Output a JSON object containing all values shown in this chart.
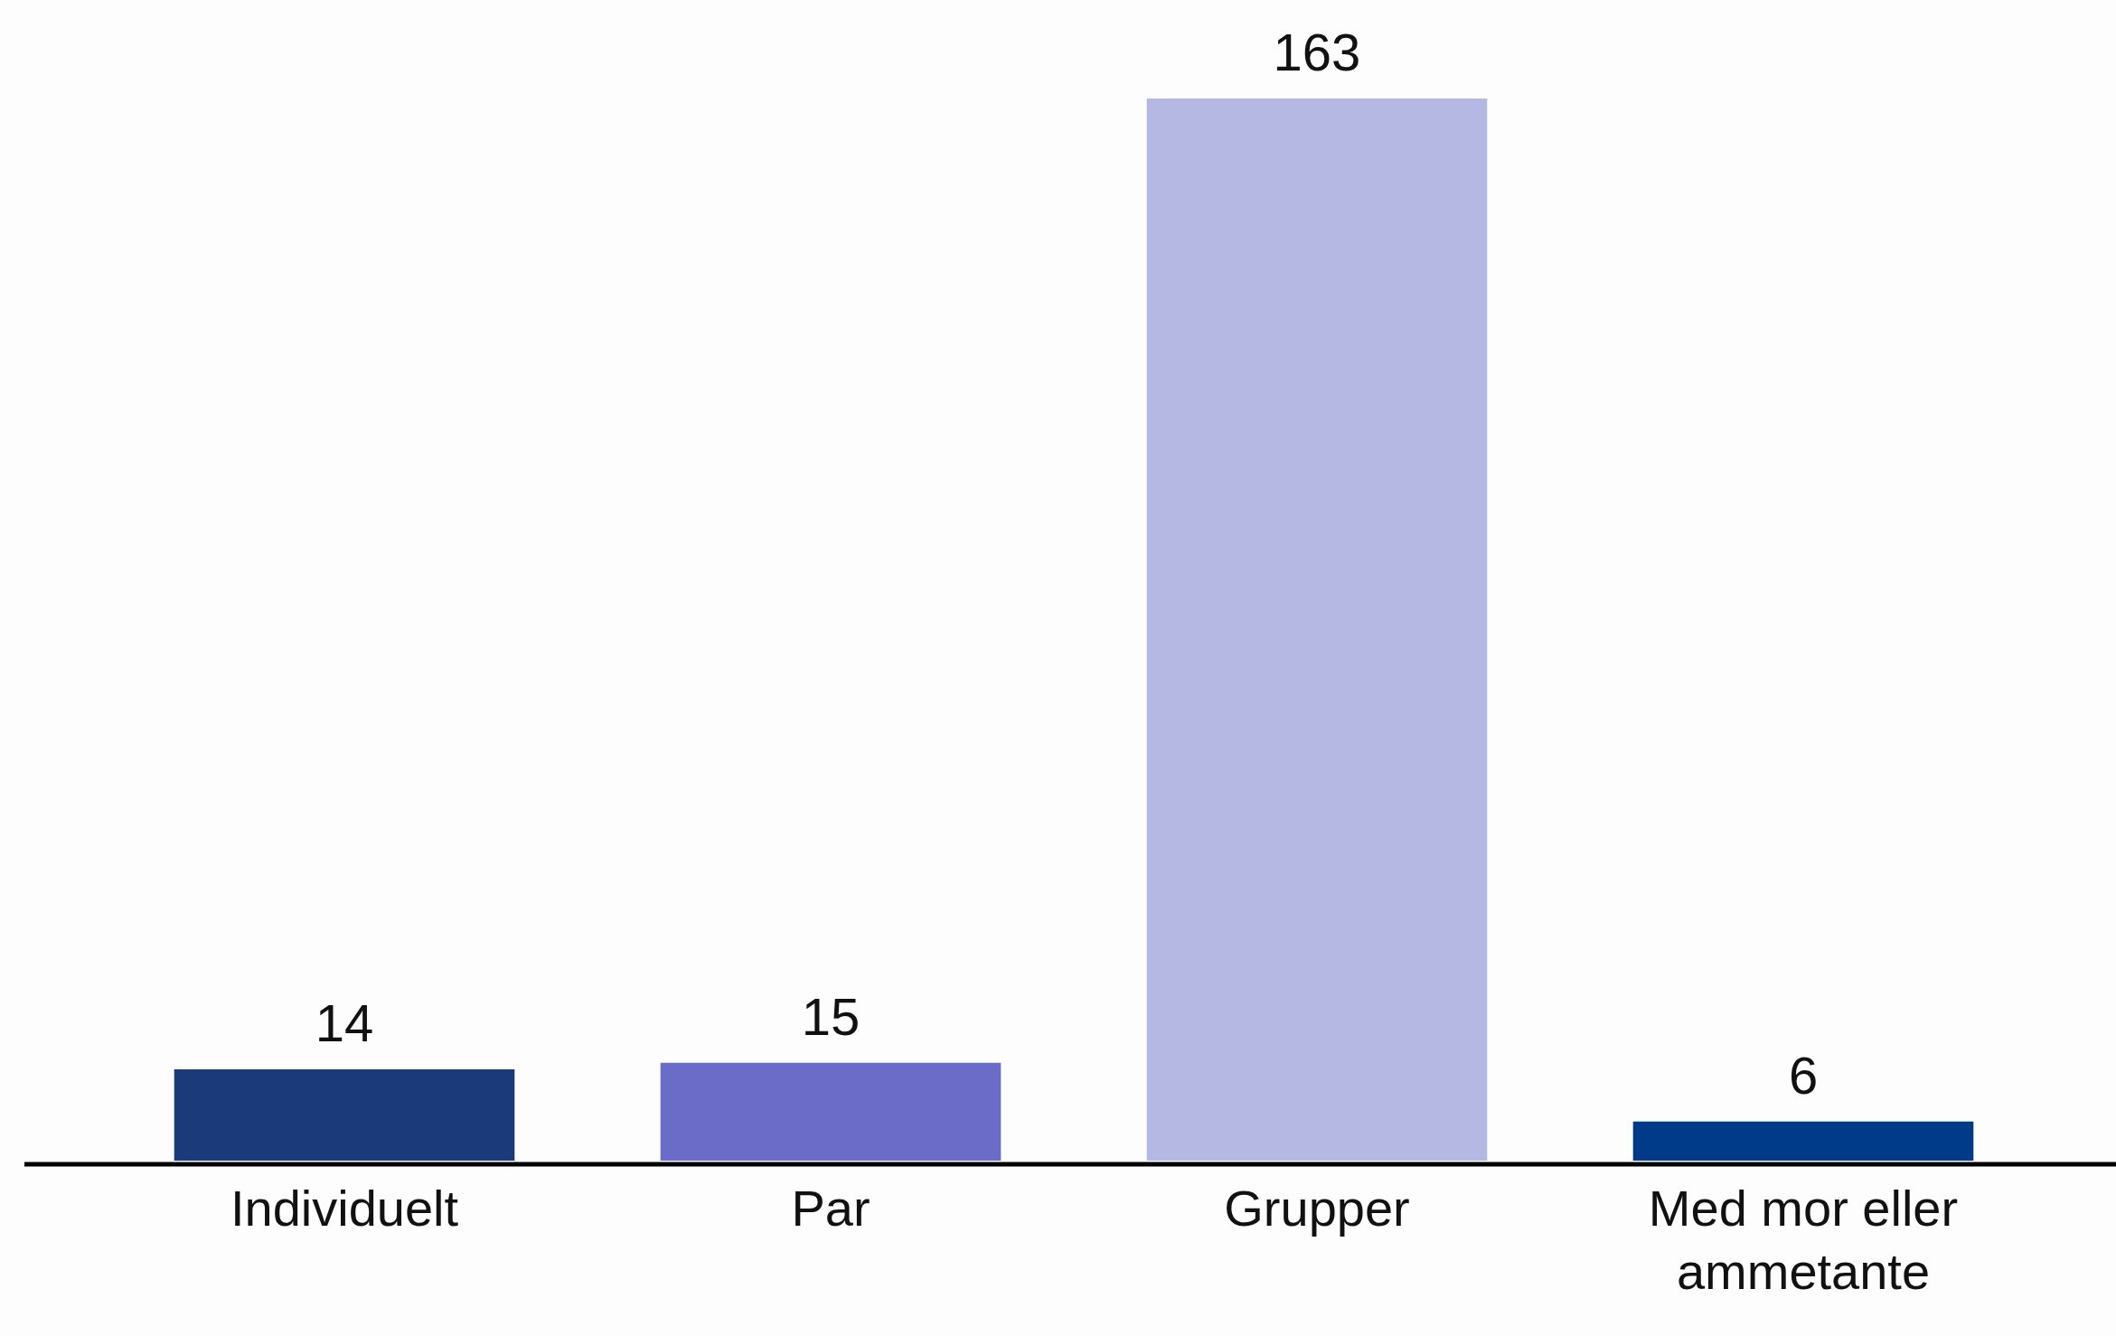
{
  "chart_data": {
    "type": "bar",
    "categories": [
      "Individuelt",
      "Par",
      "Grupper",
      "Med mor eller ammetante"
    ],
    "values": [
      14,
      15,
      163,
      6
    ],
    "colors": [
      "#1b3a7a",
      "#6b6bc8",
      "#b6b8e4",
      "#003b8a"
    ],
    "data_labels": true,
    "grid": false,
    "legend": false
  }
}
